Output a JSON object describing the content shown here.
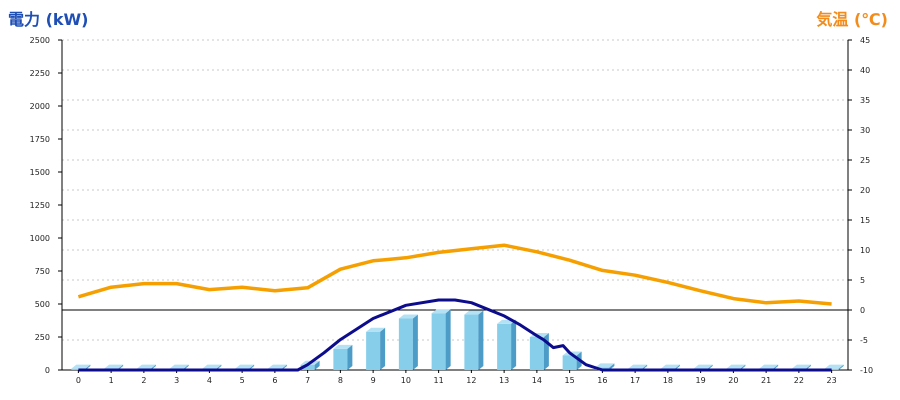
{
  "chart_data": {
    "type": "bar+line",
    "title_left": "電力 (kW)",
    "title_right": "気温 (℃)",
    "colors": {
      "left_title": "#1f4fb5",
      "right_title": "#f28c1b",
      "bar_front": "#87ceeb",
      "bar_side": "#4d9cc7",
      "bar_top": "#b5e1f5",
      "power_line": "#0c0c8c",
      "temp_line": "#f5a000",
      "grid": "#c8c8c8",
      "zero_line": "#000000"
    },
    "x_categories": [
      "0",
      "1",
      "2",
      "3",
      "4",
      "5",
      "6",
      "7",
      "8",
      "9",
      "10",
      "11",
      "12",
      "13",
      "14",
      "15",
      "16",
      "17",
      "18",
      "19",
      "20",
      "21",
      "22",
      "23"
    ],
    "y_left": {
      "min": 0,
      "max": 2500,
      "ticks": [
        "0",
        "250",
        "500",
        "750",
        "1000",
        "1250",
        "1500",
        "1750",
        "2000",
        "2250",
        "2500"
      ]
    },
    "y_right": {
      "min": -10,
      "max": 45,
      "ticks": [
        "-10",
        "-5",
        "0",
        "5",
        "10",
        "15",
        "20",
        "25",
        "30",
        "35",
        "40",
        "45"
      ]
    },
    "grid": true,
    "series": [
      {
        "kind": "bar",
        "axis": "left",
        "values": [
          10,
          10,
          10,
          10,
          10,
          10,
          10,
          40,
          160,
          290,
          390,
          430,
          420,
          350,
          250,
          110,
          20,
          10,
          10,
          10,
          10,
          10,
          10,
          10
        ]
      },
      {
        "kind": "line",
        "axis": "left",
        "x": [
          0,
          1,
          2,
          3,
          4,
          5,
          6,
          6.7,
          7,
          7.5,
          8,
          9,
          10,
          11,
          11.5,
          12,
          13,
          13.5,
          14,
          14.2,
          14.5,
          14.8,
          15,
          15.5,
          16,
          17,
          18,
          19,
          20,
          21,
          22,
          23
        ],
        "values": [
          0,
          0,
          0,
          0,
          0,
          0,
          0,
          0,
          40,
          130,
          230,
          390,
          490,
          530,
          530,
          510,
          410,
          340,
          260,
          230,
          170,
          185,
          130,
          40,
          0,
          0,
          0,
          0,
          0,
          0,
          0,
          0
        ]
      },
      {
        "kind": "line",
        "axis": "right",
        "x": [
          0,
          1,
          2,
          3,
          4,
          5,
          6,
          7,
          8,
          9,
          10,
          11,
          12,
          13,
          14,
          15,
          16,
          17,
          18,
          19,
          20,
          21,
          22,
          23
        ],
        "values": [
          2.2,
          3.8,
          4.4,
          4.4,
          3.4,
          3.8,
          3.2,
          3.7,
          6.8,
          8.2,
          8.7,
          9.6,
          10.2,
          10.8,
          9.7,
          8.3,
          6.6,
          5.8,
          4.6,
          3.2,
          1.9,
          1.2,
          1.5,
          1.0
        ]
      }
    ]
  }
}
